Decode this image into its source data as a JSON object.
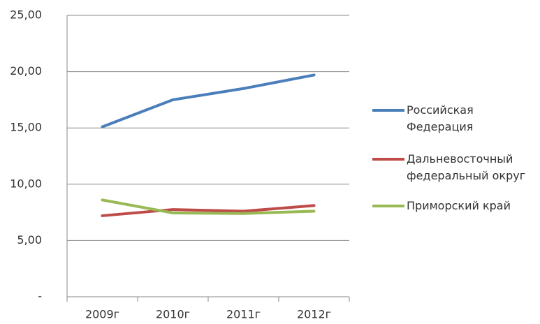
{
  "chart_data": {
    "type": "line",
    "categories": [
      "2009г",
      "2010г",
      "2011г",
      "2012г"
    ],
    "series": [
      {
        "name": "Российская Федерация",
        "color": "#4a7ebb",
        "values": [
          15.1,
          17.5,
          18.5,
          19.7
        ]
      },
      {
        "name": "Дальневосточный федеральный округ",
        "color": "#be4b48",
        "values": [
          7.2,
          7.75,
          7.6,
          8.1
        ]
      },
      {
        "name": "Приморский край",
        "color": "#98b954",
        "values": [
          8.6,
          7.45,
          7.4,
          7.6
        ]
      }
    ],
    "ylim": [
      0,
      25
    ],
    "yticks": [
      {
        "value": 0,
        "label": "-"
      },
      {
        "value": 5,
        "label": "5,00"
      },
      {
        "value": 10,
        "label": "10,00"
      },
      {
        "value": 15,
        "label": "15,00"
      },
      {
        "value": 20,
        "label": "20,00"
      },
      {
        "value": 25,
        "label": "25,00"
      }
    ],
    "grid": true
  }
}
